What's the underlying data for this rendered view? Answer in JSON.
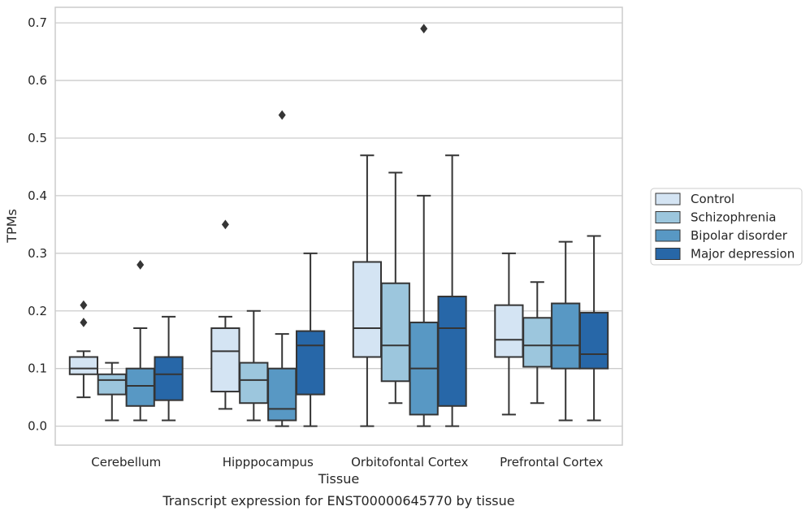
{
  "chart_data": {
    "type": "box",
    "xlabel": "Tissue",
    "ylabel": "TPMs",
    "caption": "Transcript expression for ENST00000645770 by tissue",
    "ylim": [
      -0.033,
      0.727
    ],
    "yticks": [
      "0.0",
      "0.1",
      "0.2",
      "0.3",
      "0.4",
      "0.5",
      "0.6",
      "0.7"
    ],
    "grid": "horizontal",
    "legend_position": "right",
    "categories": [
      "Cerebellum",
      "Hipppocampus",
      "Orbitofontal Cortex",
      "Prefrontal Cortex"
    ],
    "series": [
      {
        "name": "Control",
        "color": "#d4e4f3",
        "boxes": [
          {
            "whisker_low": 0.05,
            "q1": 0.09,
            "median": 0.1,
            "q3": 0.12,
            "whisker_high": 0.13,
            "outliers": [
              0.18,
              0.21
            ]
          },
          {
            "whisker_low": 0.03,
            "q1": 0.06,
            "median": 0.13,
            "q3": 0.17,
            "whisker_high": 0.19,
            "outliers": [
              0.35
            ]
          },
          {
            "whisker_low": 0.0,
            "q1": 0.12,
            "median": 0.17,
            "q3": 0.285,
            "whisker_high": 0.47,
            "outliers": []
          },
          {
            "whisker_low": 0.02,
            "q1": 0.12,
            "median": 0.15,
            "q3": 0.21,
            "whisker_high": 0.3,
            "outliers": []
          }
        ]
      },
      {
        "name": "Schizophrenia",
        "color": "#9cc6dd",
        "boxes": [
          {
            "whisker_low": 0.01,
            "q1": 0.055,
            "median": 0.08,
            "q3": 0.09,
            "whisker_high": 0.11,
            "outliers": []
          },
          {
            "whisker_low": 0.01,
            "q1": 0.04,
            "median": 0.08,
            "q3": 0.11,
            "whisker_high": 0.2,
            "outliers": []
          },
          {
            "whisker_low": 0.04,
            "q1": 0.078,
            "median": 0.14,
            "q3": 0.248,
            "whisker_high": 0.44,
            "outliers": []
          },
          {
            "whisker_low": 0.04,
            "q1": 0.103,
            "median": 0.14,
            "q3": 0.188,
            "whisker_high": 0.25,
            "outliers": []
          }
        ]
      },
      {
        "name": "Bipolar disorder",
        "color": "#5898c4",
        "boxes": [
          {
            "whisker_low": 0.01,
            "q1": 0.035,
            "median": 0.07,
            "q3": 0.1,
            "whisker_high": 0.17,
            "outliers": [
              0.28
            ]
          },
          {
            "whisker_low": 0.0,
            "q1": 0.01,
            "median": 0.03,
            "q3": 0.1,
            "whisker_high": 0.16,
            "outliers": [
              0.54
            ]
          },
          {
            "whisker_low": 0.0,
            "q1": 0.02,
            "median": 0.1,
            "q3": 0.18,
            "whisker_high": 0.4,
            "outliers": [
              0.69
            ]
          },
          {
            "whisker_low": 0.01,
            "q1": 0.1,
            "median": 0.14,
            "q3": 0.213,
            "whisker_high": 0.32,
            "outliers": []
          }
        ]
      },
      {
        "name": "Major depression",
        "color": "#2767a8",
        "boxes": [
          {
            "whisker_low": 0.01,
            "q1": 0.045,
            "median": 0.09,
            "q3": 0.12,
            "whisker_high": 0.19,
            "outliers": []
          },
          {
            "whisker_low": 0.0,
            "q1": 0.055,
            "median": 0.14,
            "q3": 0.165,
            "whisker_high": 0.3,
            "outliers": []
          },
          {
            "whisker_low": 0.0,
            "q1": 0.035,
            "median": 0.17,
            "q3": 0.225,
            "whisker_high": 0.47,
            "outliers": []
          },
          {
            "whisker_low": 0.01,
            "q1": 0.1,
            "median": 0.125,
            "q3": 0.197,
            "whisker_high": 0.33,
            "outliers": []
          }
        ]
      }
    ]
  }
}
